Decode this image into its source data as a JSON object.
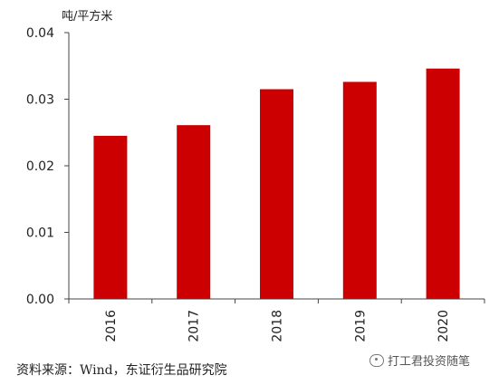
{
  "chart_data": {
    "type": "bar",
    "categories": [
      "2016",
      "2017",
      "2018",
      "2019",
      "2020"
    ],
    "values": [
      0.0245,
      0.0261,
      0.0315,
      0.0326,
      0.0346
    ],
    "title": "",
    "xlabel": "",
    "ylabel": "吨/平方米",
    "ylim": [
      0,
      0.04
    ],
    "yticks": [
      "0.00",
      "0.01",
      "0.02",
      "0.03",
      "0.04"
    ],
    "bar_color": "#cc0000",
    "grid": false
  },
  "footer": {
    "source": "资料来源：Wind，东证衍生品研究院",
    "watermark": "打工君投资随笔"
  }
}
